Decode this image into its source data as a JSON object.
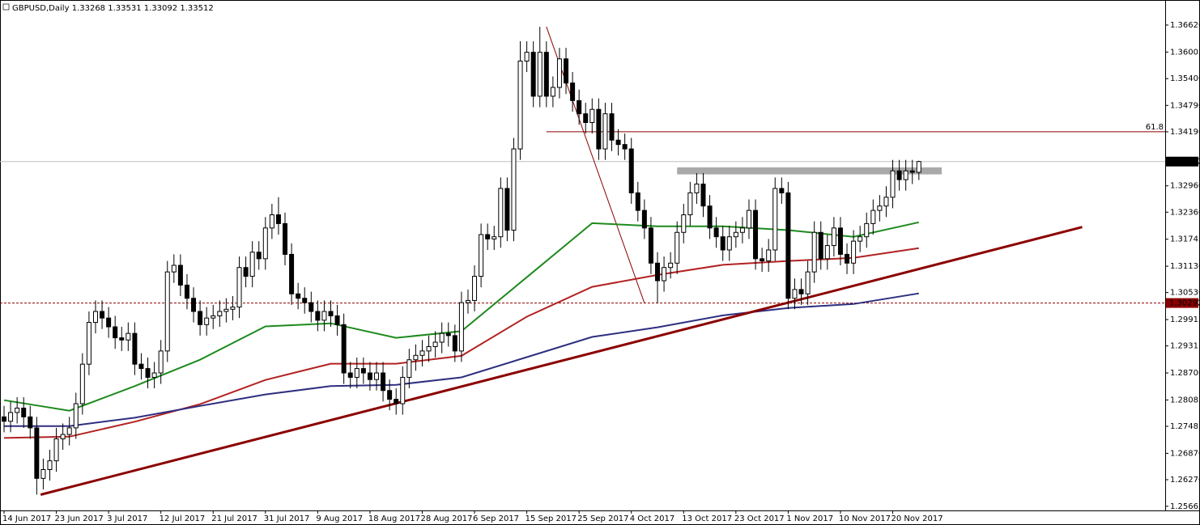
{
  "chart_data": {
    "type": "candlestick",
    "symbol": "GBPUSD,Daily",
    "up_color": "#ffffff",
    "down_color": "#000000",
    "ylim": [
      1.2557,
      1.3719
    ],
    "yticks": [
      {
        "value": 1.3662,
        "label": "1.36620"
      },
      1.36005,
      {
        "value": 1.354,
        "label": "1.35400"
      },
      {
        "value": 1.3479,
        "label": "1.34790"
      },
      {
        "value": 1.3419,
        "label": "1.34190"
      },
      {
        "value": 1.3296,
        "label": "1.32960"
      },
      {
        "value": 1.3236,
        "label": "1.32360"
      },
      1.31745,
      {
        "value": 1.3113,
        "label": "1.31130"
      },
      {
        "value": 1.3053,
        "label": "1.30530"
      },
      1.29915,
      1.29315,
      {
        "value": 1.287,
        "label": "1.28700"
      },
      1.28085,
      1.27485,
      {
        "value": 1.2687,
        "label": "1.26870"
      },
      {
        "value": 1.2627,
        "label": "1.26270"
      },
      1.25665
    ],
    "categories": [
      "14 Jun 2017",
      null,
      null,
      null,
      null,
      null,
      null,
      null,
      "23 Jun 2017",
      null,
      null,
      null,
      null,
      null,
      null,
      null,
      "3 Jul 2017",
      null,
      null,
      null,
      null,
      null,
      null,
      null,
      "12 Jul 2017",
      null,
      null,
      null,
      null,
      null,
      null,
      null,
      "21 Jul 2017",
      null,
      null,
      null,
      null,
      null,
      null,
      null,
      "31 Jul 2017",
      null,
      null,
      null,
      null,
      null,
      null,
      null,
      "9 Aug 2017",
      null,
      null,
      null,
      null,
      null,
      null,
      null,
      "18 Aug 2017",
      null,
      null,
      null,
      null,
      null,
      null,
      null,
      "28 Aug 2017",
      null,
      null,
      null,
      null,
      null,
      null,
      null,
      "6 Sep 2017",
      null,
      null,
      null,
      null,
      null,
      null,
      null,
      "15 Sep 2017",
      null,
      null,
      null,
      null,
      null,
      null,
      null,
      "25 Sep 2017",
      null,
      null,
      null,
      null,
      null,
      null,
      null,
      "4 Oct 2017",
      null,
      null,
      null,
      null,
      null,
      null,
      null,
      "13 Oct 2017",
      null,
      null,
      null,
      null,
      null,
      null,
      null,
      "23 Oct 2017",
      null,
      null,
      null,
      null,
      null,
      null,
      null,
      "1 Nov 2017",
      null,
      null,
      null,
      null,
      null,
      null,
      null,
      "10 Nov 2017",
      null,
      null,
      null,
      null,
      null,
      null,
      null,
      "20 Nov 2017",
      null,
      null,
      null,
      null
    ],
    "open": [
      1.277,
      1.276,
      1.278,
      1.279,
      1.277,
      1.2745,
      1.263,
      1.265,
      1.267,
      1.272,
      1.273,
      1.2745,
      1.28,
      1.289,
      1.2985,
      1.301,
      1.2995,
      1.2975,
      1.295,
      1.2945,
      1.296,
      1.289,
      1.288,
      1.286,
      1.287,
      1.292,
      1.31,
      1.3115,
      1.307,
      1.304,
      1.301,
      1.298,
      1.2995,
      1.3,
      1.301,
      1.3015,
      1.302,
      1.311,
      1.309,
      1.3145,
      1.313,
      1.32,
      1.323,
      1.321,
      1.314,
      1.305,
      1.304,
      1.303,
      1.301,
      1.299,
      1.301,
      1.3,
      1.298,
      1.287,
      1.286,
      1.288,
      1.287,
      1.2855,
      1.287,
      1.283,
      1.281,
      1.28,
      1.286,
      1.29,
      1.291,
      1.292,
      1.293,
      1.294,
      1.296,
      1.2955,
      1.292,
      1.303,
      1.3035,
      1.309,
      1.3185,
      1.3175,
      1.318,
      1.329,
      1.3195,
      1.338,
      1.358,
      1.36,
      1.35,
      1.36,
      1.35,
      1.352,
      1.3585,
      1.353,
      1.349,
      1.346,
      1.344,
      1.347,
      1.338,
      1.346,
      1.34,
      1.339,
      1.338,
      1.328,
      1.324,
      1.32,
      1.312,
      1.308,
      1.311,
      1.312,
      1.319,
      1.323,
      1.328,
      1.33,
      1.325,
      1.32,
      1.318,
      1.315,
      1.318,
      1.319,
      1.32,
      1.324,
      1.313,
      1.3125,
      1.315,
      1.329,
      1.328,
      1.304,
      1.306,
      1.305,
      1.31,
      1.319,
      1.313,
      1.316,
      1.32,
      1.314,
      1.312,
      1.317,
      1.318,
      1.321,
      1.324,
      1.325,
      1.327,
      1.333,
      1.331,
      1.333,
      1.33268
    ],
    "high": [
      1.2795,
      1.2805,
      1.2815,
      1.2815,
      1.2795,
      1.277,
      1.2675,
      1.2695,
      1.2745,
      1.2755,
      1.277,
      1.2825,
      1.2915,
      1.301,
      1.3035,
      1.3035,
      1.302,
      1.3,
      1.2975,
      1.2985,
      1.2985,
      1.2915,
      1.2905,
      1.2895,
      1.2945,
      1.3125,
      1.314,
      1.314,
      1.3095,
      1.3065,
      1.3035,
      1.302,
      1.3025,
      1.3035,
      1.304,
      1.3045,
      1.3135,
      1.3135,
      1.317,
      1.317,
      1.3225,
      1.3255,
      1.327,
      1.3235,
      1.3165,
      1.3075,
      1.3065,
      1.3055,
      1.3035,
      1.3035,
      1.3035,
      1.3025,
      1.3005,
      1.2895,
      1.2905,
      1.2905,
      1.2895,
      1.2895,
      1.2895,
      1.2855,
      1.2835,
      1.2885,
      1.2925,
      1.2935,
      1.2945,
      1.2955,
      1.2965,
      1.2985,
      1.2985,
      1.298,
      1.3055,
      1.306,
      1.3115,
      1.321,
      1.321,
      1.3205,
      1.3315,
      1.3315,
      1.3405,
      1.3625,
      1.3625,
      1.3625,
      1.3658,
      1.3625,
      1.3545,
      1.361,
      1.361,
      1.3555,
      1.3515,
      1.3485,
      1.3495,
      1.3495,
      1.3485,
      1.3485,
      1.3425,
      1.3415,
      1.3405,
      1.3305,
      1.3265,
      1.3225,
      1.3145,
      1.3135,
      1.3145,
      1.3215,
      1.3255,
      1.3305,
      1.3325,
      1.3325,
      1.3275,
      1.3225,
      1.3205,
      1.3205,
      1.3215,
      1.3225,
      1.3265,
      1.3265,
      1.3155,
      1.3175,
      1.3315,
      1.3315,
      1.3305,
      1.3085,
      1.3085,
      1.3125,
      1.3215,
      1.3215,
      1.3185,
      1.3225,
      1.3225,
      1.3165,
      1.3195,
      1.3205,
      1.3235,
      1.3265,
      1.3275,
      1.3295,
      1.3355,
      1.3355,
      1.3355,
      1.3355,
      1.33531
    ],
    "low": [
      1.2735,
      1.2735,
      1.2755,
      1.2745,
      1.272,
      1.2593,
      1.2605,
      1.2625,
      1.2645,
      1.2695,
      1.2705,
      1.272,
      1.2775,
      1.2865,
      1.296,
      1.297,
      1.295,
      1.2925,
      1.292,
      1.292,
      1.2865,
      1.2855,
      1.2835,
      1.2835,
      1.2845,
      1.2895,
      1.3075,
      1.3045,
      1.3015,
      1.2985,
      1.2955,
      1.2955,
      1.297,
      1.2975,
      1.2985,
      1.299,
      1.2995,
      1.3065,
      1.3065,
      1.3105,
      1.3105,
      1.3175,
      1.3185,
      1.3115,
      1.3025,
      1.3015,
      1.3005,
      1.2985,
      1.2965,
      1.2965,
      1.2975,
      1.2955,
      1.2845,
      1.2835,
      1.2835,
      1.2845,
      1.283,
      1.283,
      1.2805,
      1.2785,
      1.2775,
      1.2775,
      1.2835,
      1.2875,
      1.2885,
      1.2895,
      1.2905,
      1.2915,
      1.293,
      1.2895,
      1.2895,
      1.3005,
      1.301,
      1.3065,
      1.315,
      1.315,
      1.3155,
      1.317,
      1.317,
      1.3355,
      1.3555,
      1.3475,
      1.3475,
      1.3475,
      1.3475,
      1.3495,
      1.3505,
      1.3465,
      1.3435,
      1.3415,
      1.3415,
      1.3355,
      1.3355,
      1.3375,
      1.3365,
      1.3355,
      1.3255,
      1.3215,
      1.3175,
      1.3095,
      1.3029,
      1.3055,
      1.3085,
      1.3095,
      1.3165,
      1.3205,
      1.3255,
      1.3225,
      1.3175,
      1.3155,
      1.3125,
      1.3125,
      1.3155,
      1.3165,
      1.3175,
      1.3105,
      1.31,
      1.31,
      1.3125,
      1.3255,
      1.3015,
      1.3015,
      1.3025,
      1.3025,
      1.3075,
      1.3105,
      1.3105,
      1.3135,
      1.3115,
      1.3095,
      1.3095,
      1.3145,
      1.3155,
      1.3185,
      1.3215,
      1.3225,
      1.3245,
      1.3285,
      1.3285,
      1.33,
      1.33092
    ],
    "close": [
      1.276,
      1.278,
      1.279,
      1.277,
      1.2745,
      1.263,
      1.265,
      1.267,
      1.272,
      1.273,
      1.2745,
      1.28,
      1.289,
      1.2985,
      1.301,
      1.2995,
      1.2975,
      1.295,
      1.2945,
      1.296,
      1.289,
      1.288,
      1.286,
      1.287,
      1.292,
      1.31,
      1.3115,
      1.307,
      1.304,
      1.301,
      1.298,
      1.2995,
      1.3,
      1.301,
      1.3015,
      1.302,
      1.311,
      1.309,
      1.3145,
      1.313,
      1.32,
      1.323,
      1.321,
      1.314,
      1.305,
      1.304,
      1.303,
      1.301,
      1.299,
      1.301,
      1.3,
      1.298,
      1.287,
      1.286,
      1.288,
      1.287,
      1.2855,
      1.287,
      1.283,
      1.281,
      1.28,
      1.286,
      1.29,
      1.291,
      1.292,
      1.293,
      1.294,
      1.296,
      1.2955,
      1.292,
      1.303,
      1.3035,
      1.309,
      1.3185,
      1.3175,
      1.318,
      1.329,
      1.3195,
      1.338,
      1.358,
      1.36,
      1.35,
      1.36,
      1.35,
      1.352,
      1.3585,
      1.353,
      1.349,
      1.346,
      1.344,
      1.347,
      1.338,
      1.346,
      1.34,
      1.339,
      1.338,
      1.328,
      1.324,
      1.32,
      1.312,
      1.308,
      1.311,
      1.312,
      1.319,
      1.323,
      1.328,
      1.33,
      1.325,
      1.32,
      1.318,
      1.315,
      1.318,
      1.319,
      1.32,
      1.324,
      1.313,
      1.3125,
      1.315,
      1.329,
      1.328,
      1.304,
      1.306,
      1.305,
      1.31,
      1.319,
      1.313,
      1.316,
      1.32,
      1.314,
      1.312,
      1.317,
      1.318,
      1.321,
      1.324,
      1.325,
      1.327,
      1.333,
      1.331,
      1.333,
      1.33268,
      1.33512
    ],
    "moving_averages": [
      {
        "color": "#1e8a1e",
        "x": [
          0,
          10,
          20,
          30,
          40,
          50,
          60,
          70,
          80,
          90,
          100,
          110,
          120,
          130,
          140
        ],
        "values": [
          1.2808,
          1.2784,
          1.284,
          1.29,
          1.2976,
          1.2983,
          1.295,
          1.2965,
          1.3088,
          1.3211,
          1.3204,
          1.3204,
          1.3195,
          1.318,
          1.3213
        ]
      },
      {
        "color": "#b22222",
        "x": [
          0,
          10,
          20,
          30,
          40,
          50,
          60,
          70,
          80,
          90,
          100,
          110,
          120,
          130,
          140
        ],
        "values": [
          1.2722,
          1.2725,
          1.2759,
          1.2799,
          1.2854,
          1.2891,
          1.2891,
          1.2909,
          1.2998,
          1.3066,
          1.3093,
          1.3116,
          1.3125,
          1.3132,
          1.3154
        ]
      },
      {
        "color": "#2e2e80",
        "x": [
          0,
          10,
          20,
          30,
          40,
          50,
          60,
          70,
          80,
          90,
          100,
          110,
          120,
          130,
          140
        ],
        "values": [
          1.2749,
          1.2749,
          1.2768,
          1.2795,
          1.2821,
          1.284,
          1.2843,
          1.286,
          1.2906,
          1.2952,
          1.2974,
          1.3001,
          1.3018,
          1.3027,
          1.3051
        ]
      }
    ],
    "trendline": {
      "color": "#8b0000",
      "x": [
        5.6,
        165
      ],
      "values": [
        1.2593,
        1.3202
      ]
    },
    "fibo": {
      "color": "#8b0000",
      "x": [
        83,
        98
      ],
      "values": [
        1.3658,
        1.3029
      ],
      "level": 1.3419,
      "level_name": 61.8
    },
    "support": {
      "color": "#8b0000",
      "value": 1.30292
    },
    "zone": {
      "color": "#a9a9a9",
      "x": [
        103,
        143.5
      ],
      "values": [
        1.3322,
        1.3338
      ]
    }
  }
}
